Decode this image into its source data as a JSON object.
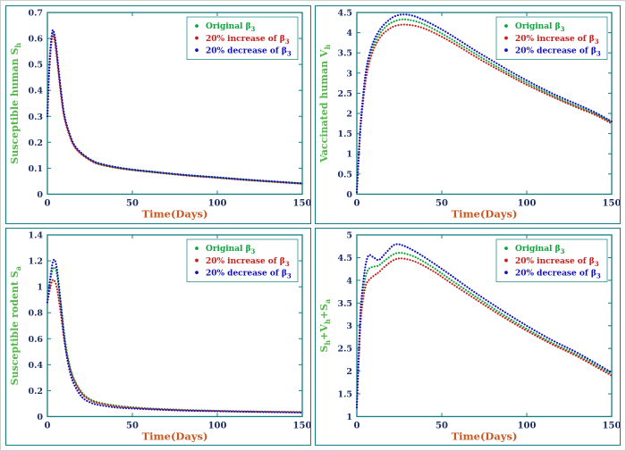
{
  "colors": {
    "figure_border": "#cfcfcf",
    "panel_border": "#128083",
    "axis": "#128083",
    "tick_label": "#1d2f63",
    "xlabel": "#c9571f",
    "ylabel": "#55b64c",
    "legend_border": "#128083",
    "background": "#ffffff"
  },
  "chart_data": [
    {
      "type": "line",
      "id": "susceptible-human",
      "ylabel_segments": [
        {
          "t": "Susceptible human S"
        },
        {
          "t": "h",
          "sub": true
        }
      ],
      "xlabel": "Time(Days)",
      "xlim": [
        0,
        150
      ],
      "ylim": [
        0,
        0.7
      ],
      "xticks": [
        0,
        50,
        100,
        150
      ],
      "xtick_labels": [
        "0",
        "50",
        "100",
        "150"
      ],
      "yticks": [
        0,
        0.1,
        0.2,
        0.3,
        0.4,
        0.5,
        0.6,
        0.7
      ],
      "ytick_labels": [
        "0",
        "0.1",
        "0.2",
        "0.3",
        "0.4",
        "0.5",
        "0.6",
        "0.7"
      ],
      "grid": false,
      "legend_position": "top-right",
      "series": [
        {
          "id": "original",
          "color": "#0ca63a",
          "label_segments": [
            {
              "t": "Original β"
            },
            {
              "t": "3",
              "sub": true
            }
          ],
          "x": [
            0,
            1,
            2,
            3,
            4,
            5,
            6,
            8,
            10,
            13,
            16,
            20,
            25,
            30,
            40,
            50,
            60,
            80,
            100,
            120,
            150
          ],
          "y": [
            0.3,
            0.47,
            0.57,
            0.62,
            0.61,
            0.57,
            0.51,
            0.39,
            0.3,
            0.23,
            0.185,
            0.157,
            0.133,
            0.118,
            0.103,
            0.094,
            0.087,
            0.074,
            0.064,
            0.054,
            0.041
          ]
        },
        {
          "id": "increase-20",
          "color": "#c8201d",
          "label_segments": [
            {
              "t": "20% increase of β"
            },
            {
              "t": "3",
              "sub": true
            }
          ],
          "x": [
            0,
            1,
            2,
            3,
            4,
            5,
            6,
            8,
            10,
            13,
            16,
            20,
            25,
            30,
            40,
            50,
            60,
            80,
            100,
            120,
            150
          ],
          "y": [
            0.3,
            0.46,
            0.555,
            0.61,
            0.6,
            0.56,
            0.5,
            0.383,
            0.294,
            0.226,
            0.182,
            0.154,
            0.131,
            0.116,
            0.102,
            0.093,
            0.086,
            0.073,
            0.063,
            0.053,
            0.04
          ]
        },
        {
          "id": "decrease-20",
          "color": "#1212c4",
          "label_segments": [
            {
              "t": "20% decrease of β"
            },
            {
              "t": "3",
              "sub": true
            }
          ],
          "x": [
            0,
            1,
            2,
            3,
            4,
            5,
            6,
            8,
            10,
            13,
            16,
            20,
            25,
            30,
            40,
            50,
            60,
            80,
            100,
            120,
            150
          ],
          "y": [
            0.3,
            0.48,
            0.58,
            0.63,
            0.62,
            0.58,
            0.52,
            0.4,
            0.305,
            0.234,
            0.188,
            0.159,
            0.135,
            0.12,
            0.105,
            0.095,
            0.088,
            0.075,
            0.065,
            0.055,
            0.042
          ]
        }
      ]
    },
    {
      "type": "line",
      "id": "vaccinated-human",
      "ylabel_segments": [
        {
          "t": "Vaccinated human V"
        },
        {
          "t": "h",
          "sub": true
        }
      ],
      "xlabel": "Time(Days)",
      "xlim": [
        0,
        150
      ],
      "ylim": [
        0,
        4.5
      ],
      "xticks": [
        0,
        50,
        100,
        150
      ],
      "xtick_labels": [
        "0",
        "50",
        "100",
        "150"
      ],
      "yticks": [
        0,
        0.5,
        1,
        1.5,
        2,
        2.5,
        3,
        3.5,
        4,
        4.5
      ],
      "ytick_labels": [
        "0",
        "0.5",
        "1",
        "1.5",
        "2",
        "2.5",
        "3",
        "3.5",
        "4",
        "4.5"
      ],
      "grid": false,
      "legend_position": "top-right",
      "series": [
        {
          "id": "original",
          "color": "#0ca63a",
          "label_segments": [
            {
              "t": "Original β"
            },
            {
              "t": "3",
              "sub": true
            }
          ],
          "x": [
            0,
            1,
            2,
            3,
            5,
            7,
            10,
            14,
            18,
            22,
            27,
            33,
            40,
            50,
            60,
            70,
            80,
            90,
            100,
            110,
            120,
            130,
            140,
            150
          ],
          "y": [
            0.05,
            0.85,
            1.55,
            2.1,
            2.85,
            3.3,
            3.7,
            4.0,
            4.18,
            4.28,
            4.33,
            4.3,
            4.2,
            3.98,
            3.73,
            3.47,
            3.22,
            2.98,
            2.76,
            2.55,
            2.35,
            2.17,
            2.0,
            1.78
          ]
        },
        {
          "id": "increase-20",
          "color": "#c8201d",
          "label_segments": [
            {
              "t": "20% increase of β"
            },
            {
              "t": "3",
              "sub": true
            }
          ],
          "x": [
            0,
            1,
            2,
            3,
            5,
            7,
            10,
            14,
            18,
            22,
            27,
            33,
            40,
            50,
            60,
            70,
            80,
            90,
            100,
            110,
            120,
            130,
            140,
            150
          ],
          "y": [
            0.05,
            0.8,
            1.5,
            2.0,
            2.75,
            3.2,
            3.6,
            3.9,
            4.06,
            4.16,
            4.2,
            4.18,
            4.1,
            3.9,
            3.66,
            3.4,
            3.16,
            2.93,
            2.71,
            2.51,
            2.32,
            2.14,
            1.97,
            1.75
          ]
        },
        {
          "id": "decrease-20",
          "color": "#1212c4",
          "label_segments": [
            {
              "t": "20% decrease of β"
            },
            {
              "t": "3",
              "sub": true
            }
          ],
          "x": [
            0,
            1,
            2,
            3,
            5,
            7,
            10,
            14,
            18,
            22,
            27,
            33,
            40,
            50,
            60,
            70,
            80,
            90,
            100,
            110,
            120,
            130,
            140,
            150
          ],
          "y": [
            0.05,
            0.9,
            1.6,
            2.15,
            2.95,
            3.4,
            3.8,
            4.1,
            4.28,
            4.4,
            4.45,
            4.42,
            4.3,
            4.08,
            3.82,
            3.55,
            3.3,
            3.05,
            2.82,
            2.6,
            2.4,
            2.22,
            2.03,
            1.8
          ]
        }
      ]
    },
    {
      "type": "line",
      "id": "susceptible-rodent",
      "ylabel_segments": [
        {
          "t": "Susceptible rodent S"
        },
        {
          "t": "a",
          "sub": true
        }
      ],
      "xlabel": "Time(Days)",
      "xlim": [
        0,
        150
      ],
      "ylim": [
        0,
        1.4
      ],
      "xticks": [
        0,
        50,
        100,
        150
      ],
      "xtick_labels": [
        "0",
        "50",
        "100",
        "150"
      ],
      "yticks": [
        0,
        0.2,
        0.4,
        0.6,
        0.8,
        1,
        1.2,
        1.4
      ],
      "ytick_labels": [
        "0",
        "0.2",
        "0.4",
        "0.6",
        "0.8",
        "1",
        "1.2",
        "1.4"
      ],
      "grid": false,
      "legend_position": "top-right",
      "series": [
        {
          "id": "original",
          "color": "#0ca63a",
          "label_segments": [
            {
              "t": "Original β"
            },
            {
              "t": "3",
              "sub": true
            }
          ],
          "x": [
            0,
            1,
            2,
            3,
            4,
            5,
            6,
            8,
            10,
            12,
            15,
            20,
            25,
            30,
            40,
            50,
            60,
            80,
            100,
            120,
            150
          ],
          "y": [
            0.88,
            0.98,
            1.07,
            1.13,
            1.15,
            1.13,
            1.06,
            0.85,
            0.63,
            0.46,
            0.31,
            0.19,
            0.135,
            0.11,
            0.085,
            0.072,
            0.063,
            0.052,
            0.045,
            0.04,
            0.035
          ]
        },
        {
          "id": "increase-20",
          "color": "#c8201d",
          "label_segments": [
            {
              "t": "20% increase of β"
            },
            {
              "t": "3",
              "sub": true
            }
          ],
          "x": [
            0,
            1,
            2,
            3,
            4,
            5,
            6,
            8,
            10,
            12,
            15,
            20,
            25,
            30,
            40,
            50,
            60,
            80,
            100,
            120,
            150
          ],
          "y": [
            0.88,
            0.95,
            1.01,
            1.05,
            1.05,
            1.02,
            0.96,
            0.78,
            0.58,
            0.44,
            0.3,
            0.18,
            0.128,
            0.104,
            0.08,
            0.068,
            0.06,
            0.049,
            0.043,
            0.038,
            0.033
          ]
        },
        {
          "id": "decrease-20",
          "color": "#1212c4",
          "label_segments": [
            {
              "t": "20% decrease of β"
            },
            {
              "t": "3",
              "sub": true
            }
          ],
          "x": [
            0,
            1,
            2,
            3,
            4,
            5,
            6,
            8,
            10,
            12,
            15,
            20,
            25,
            30,
            40,
            50,
            60,
            80,
            100,
            120,
            150
          ],
          "y": [
            0.88,
            1.0,
            1.1,
            1.18,
            1.21,
            1.18,
            1.1,
            0.86,
            0.6,
            0.42,
            0.27,
            0.155,
            0.11,
            0.09,
            0.07,
            0.062,
            0.056,
            0.046,
            0.041,
            0.036,
            0.031
          ]
        }
      ]
    },
    {
      "type": "line",
      "id": "total-sh-vh-sa",
      "ylabel_segments": [
        {
          "t": "S"
        },
        {
          "t": "h",
          "sub": true
        },
        {
          "t": "+V"
        },
        {
          "t": "h",
          "sub": true
        },
        {
          "t": "+S"
        },
        {
          "t": "a",
          "sub": true
        }
      ],
      "xlabel": "Time(Days)",
      "xlim": [
        0,
        150
      ],
      "ylim": [
        1,
        5
      ],
      "xticks": [
        0,
        50,
        100,
        150
      ],
      "xtick_labels": [
        "0",
        "50",
        "100",
        "150"
      ],
      "yticks": [
        1,
        1.5,
        2,
        2.5,
        3,
        3.5,
        4,
        4.5,
        5
      ],
      "ytick_labels": [
        "1",
        "1.5",
        "2",
        "2.5",
        "3",
        "3.5",
        "4",
        "4.5",
        "5"
      ],
      "grid": false,
      "legend_position": "top-right",
      "series": [
        {
          "id": "original",
          "color": "#0ca63a",
          "label_segments": [
            {
              "t": "Original β"
            },
            {
              "t": "3",
              "sub": true
            }
          ],
          "x": [
            0,
            1,
            2,
            3,
            5,
            7,
            10,
            13,
            17,
            22,
            27,
            35,
            45,
            55,
            70,
            85,
            100,
            115,
            130,
            150
          ],
          "y": [
            1.2,
            2.2,
            3.05,
            3.55,
            4.05,
            4.25,
            4.3,
            4.33,
            4.45,
            4.58,
            4.6,
            4.5,
            4.28,
            4.02,
            3.64,
            3.27,
            2.93,
            2.62,
            2.35,
            1.93
          ]
        },
        {
          "id": "increase-20",
          "color": "#c8201d",
          "label_segments": [
            {
              "t": "20% increase of β"
            },
            {
              "t": "3",
              "sub": true
            }
          ],
          "x": [
            0,
            1,
            2,
            3,
            5,
            7,
            10,
            13,
            17,
            22,
            27,
            35,
            45,
            55,
            70,
            85,
            100,
            115,
            130,
            150
          ],
          "y": [
            1.2,
            2.1,
            2.9,
            3.4,
            3.85,
            4.0,
            4.1,
            4.18,
            4.32,
            4.45,
            4.48,
            4.4,
            4.2,
            3.95,
            3.58,
            3.22,
            2.89,
            2.59,
            2.32,
            1.9
          ]
        },
        {
          "id": "decrease-20",
          "color": "#1212c4",
          "label_segments": [
            {
              "t": "20% decrease of β"
            },
            {
              "t": "3",
              "sub": true
            }
          ],
          "x": [
            0,
            1,
            2,
            3,
            5,
            7,
            10,
            13,
            17,
            22,
            27,
            35,
            45,
            55,
            70,
            85,
            100,
            115,
            130,
            150
          ],
          "y": [
            1.2,
            2.3,
            3.2,
            3.7,
            4.3,
            4.55,
            4.5,
            4.45,
            4.6,
            4.78,
            4.77,
            4.62,
            4.38,
            4.12,
            3.72,
            3.35,
            3.0,
            2.68,
            2.4,
            1.97
          ]
        }
      ]
    }
  ]
}
